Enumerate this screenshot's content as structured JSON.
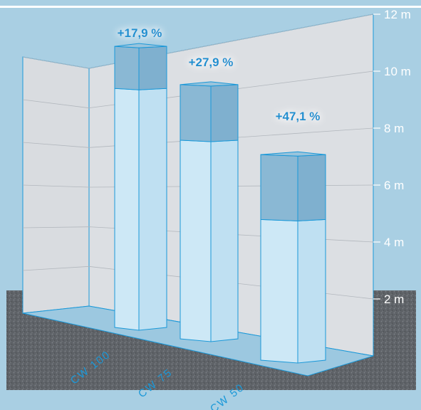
{
  "chart_data": {
    "type": "bar",
    "categories": [
      "CW 100",
      "CW 75",
      "CW 50"
    ],
    "series": [
      {
        "values": [
          9.1,
          7.5,
          5.2
        ]
      },
      {
        "values": [
          10.7,
          9.6,
          7.6
        ]
      }
    ],
    "annotations": [
      "+17,9 %",
      "+27,9 %",
      "+47,1 %"
    ],
    "y_ticks": [
      "2 m",
      "4 m",
      "6 m",
      "8 m",
      "10 m",
      "12 m"
    ],
    "ylim": [
      0,
      12
    ],
    "grid": true,
    "title": "",
    "xlabel": "",
    "ylabel": "",
    "colors": {
      "background": "#a9cfe3",
      "wall": "#d9dce0",
      "floor": "#5b5f64",
      "bar_base": "#cde8f6",
      "bar_top": "#8ab8d4",
      "outline": "#1a98d8",
      "label": "#1a8fd0"
    }
  }
}
